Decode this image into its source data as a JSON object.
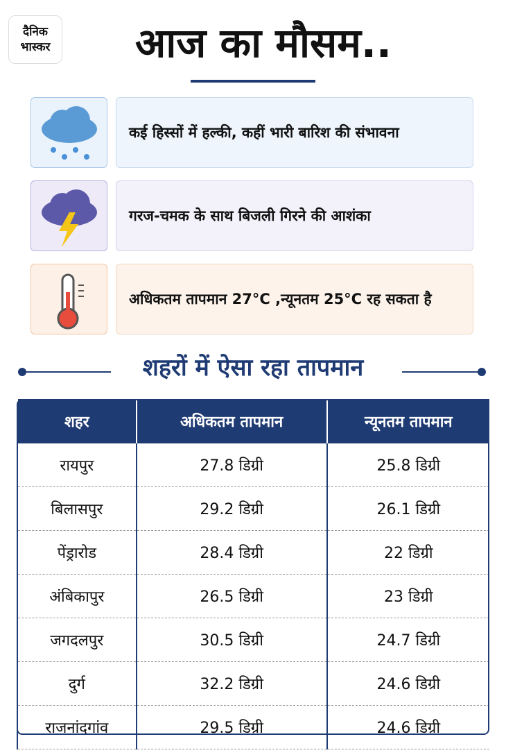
{
  "header": {
    "logo": [
      "दैनिक",
      "भास्कर"
    ],
    "title": "आज का मौसम.."
  },
  "forecast": [
    {
      "text": "कई हिस्सों में हल्की, कहीं भारी बारिश की संभावना"
    },
    {
      "text": "गरज-चमक के साथ बिजली गिरने की आशंका"
    },
    {
      "text": "अधिकतम तापमान 27°C ,न्यूनतम  25°C रह सकता है"
    }
  ],
  "section_title": "शहरों में ऐसा रहा तापमान",
  "table": {
    "headers": [
      "शहर",
      "अधिकतम तापमान",
      "न्यूनतम तापमान"
    ],
    "rows": [
      [
        "रायपुर",
        "27.8 डिग्री",
        "25.8 डिग्री"
      ],
      [
        "बिलासपुर",
        "29.2 डिग्री",
        "26.1 डिग्री"
      ],
      [
        "पेंड्रारोड",
        "28.4 डिग्री",
        "22 डिग्री"
      ],
      [
        "अंबिकापुर",
        "26.5 डिग्री",
        "23 डिग्री"
      ],
      [
        "जगदलपुर",
        "30.5 डिग्री",
        "24.7 डिग्री"
      ],
      [
        "दुर्ग",
        "32.2 डिग्री",
        "24.6 डिग्री"
      ],
      [
        "राजनांदगांव",
        "29.5 डिग्री",
        "24.6 डिग्री"
      ]
    ]
  }
}
